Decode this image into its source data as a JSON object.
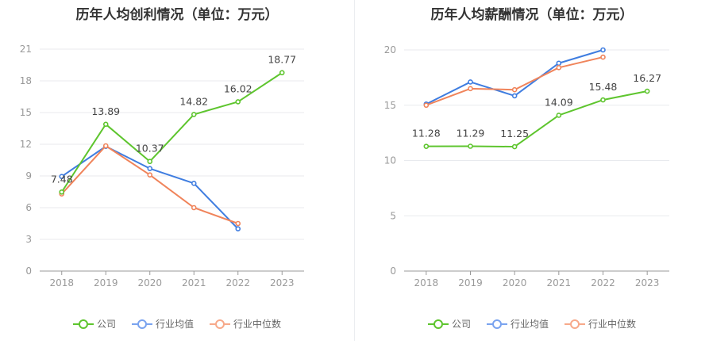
{
  "chart_data": [
    {
      "type": "line",
      "title": "历年人均创利情况（单位：万元）",
      "categories": [
        "2018",
        "2019",
        "2020",
        "2021",
        "2022",
        "2023"
      ],
      "y_ticks": [
        "0",
        "3",
        "6",
        "9",
        "12",
        "15",
        "18",
        "21"
      ],
      "ylim": [
        0,
        21
      ],
      "grid": true,
      "legend_position": "bottom",
      "series": [
        {
          "name": "公司",
          "color": "#5ec52e",
          "values": [
            7.48,
            13.89,
            10.37,
            14.82,
            16.02,
            18.77
          ],
          "labels": [
            "7.48",
            "13.89",
            "10.37",
            "14.82",
            "16.02",
            "18.77"
          ]
        },
        {
          "name": "行业均值",
          "color": "#3f7de0",
          "values": [
            8.95,
            11.8,
            9.7,
            8.3,
            4.0,
            null
          ]
        },
        {
          "name": "行业中位数",
          "color": "#f0845b",
          "values": [
            7.3,
            11.85,
            9.1,
            6.0,
            4.5,
            null
          ]
        }
      ]
    },
    {
      "type": "line",
      "title": "历年人均薪酬情况（单位：万元）",
      "categories": [
        "2018",
        "2019",
        "2020",
        "2021",
        "2022",
        "2023"
      ],
      "y_ticks": [
        "0",
        "5",
        "10",
        "15",
        "20"
      ],
      "ylim": [
        0,
        20
      ],
      "grid": true,
      "legend_position": "bottom",
      "series": [
        {
          "name": "公司",
          "color": "#5ec52e",
          "values": [
            11.28,
            11.29,
            11.25,
            14.09,
            15.48,
            16.27
          ],
          "labels": [
            "11.28",
            "11.29",
            "11.25",
            "14.09",
            "15.48",
            "16.27"
          ]
        },
        {
          "name": "行业均值",
          "color": "#3f7de0",
          "values": [
            15.1,
            17.1,
            15.85,
            18.8,
            20.0,
            null
          ]
        },
        {
          "name": "行业中位数",
          "color": "#f0845b",
          "values": [
            15.0,
            16.5,
            16.4,
            18.4,
            19.35,
            null
          ]
        }
      ]
    }
  ],
  "legend_colors": {
    "公司": "#5ec52e",
    "行业均值": "#7aa3ef",
    "行业中位数": "#f7a98a"
  }
}
